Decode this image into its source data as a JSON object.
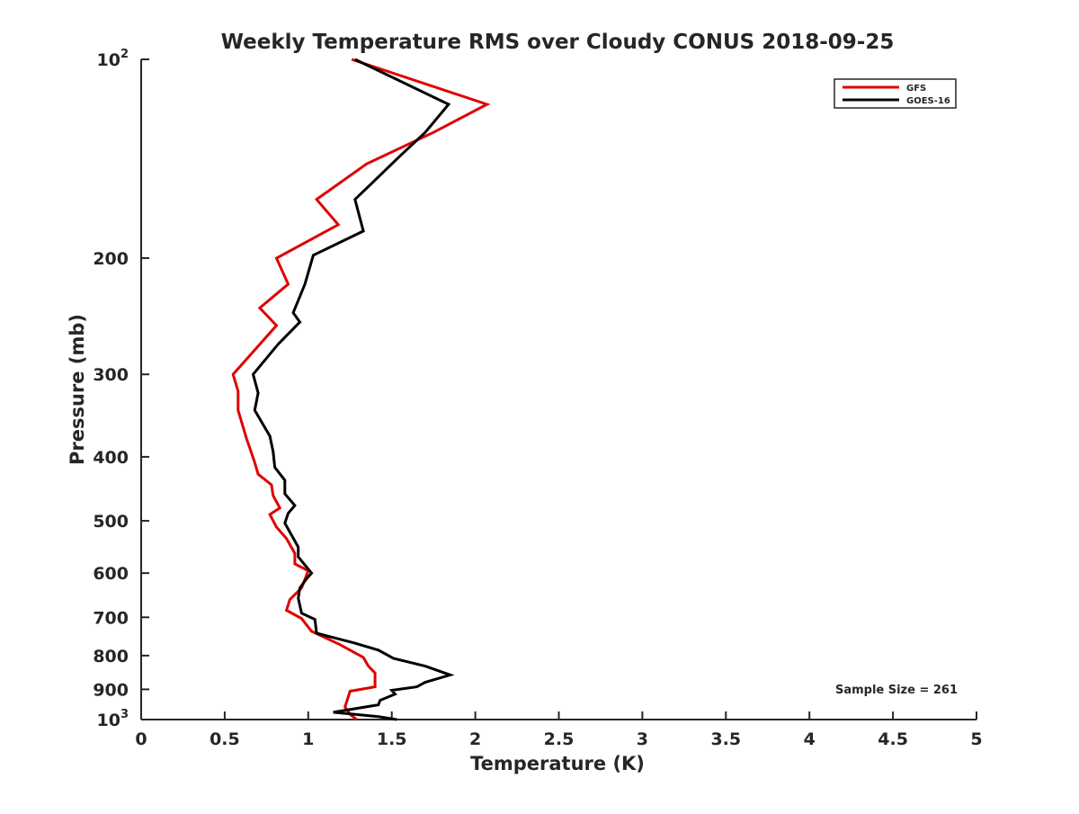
{
  "chart_data": {
    "type": "line",
    "title": "Weekly Temperature RMS over Cloudy CONUS 2018-09-25",
    "xlabel": "Temperature (K)",
    "ylabel": "Pressure (mb)",
    "xlim": [
      0,
      5
    ],
    "ylim": [
      100,
      1000
    ],
    "y_scale": "log",
    "y_reversed": true,
    "x_ticks": [
      "0",
      "0.5",
      "1",
      "1.5",
      "2",
      "2.5",
      "3",
      "3.5",
      "4",
      "4.5",
      "5"
    ],
    "x_tick_values": [
      0,
      0.5,
      1,
      1.5,
      2,
      2.5,
      3,
      3.5,
      4,
      4.5,
      5
    ],
    "y_ticks": [
      {
        "value": 100,
        "base": "10",
        "exp": "2"
      },
      {
        "value": 200,
        "label": "200"
      },
      {
        "value": 300,
        "label": "300"
      },
      {
        "value": 400,
        "label": "400"
      },
      {
        "value": 500,
        "label": "500"
      },
      {
        "value": 600,
        "label": "600"
      },
      {
        "value": 700,
        "label": "700"
      },
      {
        "value": 800,
        "label": "800"
      },
      {
        "value": 900,
        "label": "900"
      },
      {
        "value": 1000,
        "base": "10",
        "exp": "3"
      }
    ],
    "grid": false,
    "legend_position": "top-right",
    "annotation": "Sample Size = 261",
    "series": [
      {
        "name": "GFS",
        "color": "#e00000",
        "points": [
          [
            1.26,
            100
          ],
          [
            2.07,
            117
          ],
          [
            1.75,
            129
          ],
          [
            1.35,
            144
          ],
          [
            1.05,
            163
          ],
          [
            1.18,
            178
          ],
          [
            0.81,
            200
          ],
          [
            0.88,
            219
          ],
          [
            0.71,
            238
          ],
          [
            0.81,
            253
          ],
          [
            0.55,
            300
          ],
          [
            0.58,
            318
          ],
          [
            0.58,
            340
          ],
          [
            0.63,
            375
          ],
          [
            0.68,
            408
          ],
          [
            0.7,
            425
          ],
          [
            0.78,
            441
          ],
          [
            0.79,
            458
          ],
          [
            0.83,
            478
          ],
          [
            0.77,
            489
          ],
          [
            0.81,
            511
          ],
          [
            0.87,
            532
          ],
          [
            0.92,
            560
          ],
          [
            0.92,
            581
          ],
          [
            1.0,
            595
          ],
          [
            0.96,
            632
          ],
          [
            0.89,
            658
          ],
          [
            0.87,
            683
          ],
          [
            0.96,
            703
          ],
          [
            1.02,
            735
          ],
          [
            1.19,
            770
          ],
          [
            1.33,
            805
          ],
          [
            1.36,
            830
          ],
          [
            1.4,
            850
          ],
          [
            1.4,
            892
          ],
          [
            1.25,
            906
          ],
          [
            1.22,
            957
          ],
          [
            1.25,
            982
          ],
          [
            1.29,
            1000
          ]
        ]
      },
      {
        "name": "GOES-16",
        "color": "#000000",
        "points": [
          [
            1.28,
            100
          ],
          [
            1.84,
            117
          ],
          [
            1.7,
            129
          ],
          [
            1.55,
            140
          ],
          [
            1.37,
            155
          ],
          [
            1.28,
            163
          ],
          [
            1.33,
            182
          ],
          [
            1.03,
            198
          ],
          [
            0.98,
            219
          ],
          [
            0.91,
            242
          ],
          [
            0.95,
            250
          ],
          [
            0.82,
            270
          ],
          [
            0.67,
            300
          ],
          [
            0.7,
            320
          ],
          [
            0.68,
            340
          ],
          [
            0.77,
            372
          ],
          [
            0.79,
            393
          ],
          [
            0.8,
            415
          ],
          [
            0.86,
            434
          ],
          [
            0.86,
            455
          ],
          [
            0.92,
            474
          ],
          [
            0.88,
            487
          ],
          [
            0.86,
            504
          ],
          [
            0.94,
            548
          ],
          [
            0.94,
            567
          ],
          [
            1.02,
            600
          ],
          [
            0.99,
            612
          ],
          [
            0.95,
            632
          ],
          [
            0.94,
            655
          ],
          [
            0.96,
            690
          ],
          [
            1.04,
            705
          ],
          [
            1.05,
            740
          ],
          [
            1.27,
            765
          ],
          [
            1.42,
            785
          ],
          [
            1.51,
            808
          ],
          [
            1.7,
            830
          ],
          [
            1.85,
            856
          ],
          [
            1.7,
            878
          ],
          [
            1.65,
            892
          ],
          [
            1.5,
            903
          ],
          [
            1.52,
            915
          ],
          [
            1.43,
            935
          ],
          [
            1.42,
            950
          ],
          [
            1.15,
            975
          ],
          [
            1.42,
            990
          ],
          [
            1.53,
            1000
          ]
        ]
      }
    ]
  }
}
